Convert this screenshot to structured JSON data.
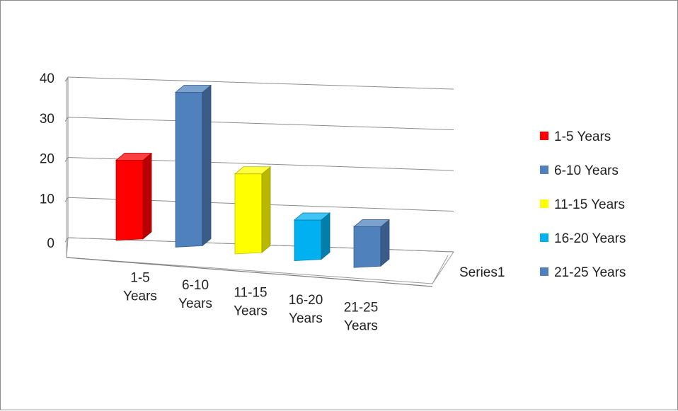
{
  "chart_data": {
    "type": "bar",
    "categories": [
      "1-5 Years",
      "6-10 Years",
      "11-15 Years",
      "16-20 Years",
      "21-25 Years"
    ],
    "series": [
      {
        "name": "Series1",
        "values": [
          20,
          39,
          20,
          10,
          10
        ]
      }
    ],
    "colors": [
      "#ff0000",
      "#4f81bd",
      "#ffff00",
      "#00b0f0",
      "#4f81bd"
    ],
    "legend": {
      "placement": "right",
      "entries": [
        "1-5 Years",
        "6-10 Years",
        "11-15 Years",
        "16-20 Years",
        "21-25 Years"
      ]
    },
    "yticks": [
      "0",
      "10",
      "20",
      "30",
      "40"
    ],
    "ylim": [
      0,
      40
    ],
    "grid": true,
    "title": "",
    "xlabel": "",
    "ylabel": "",
    "style": "3d-column"
  }
}
